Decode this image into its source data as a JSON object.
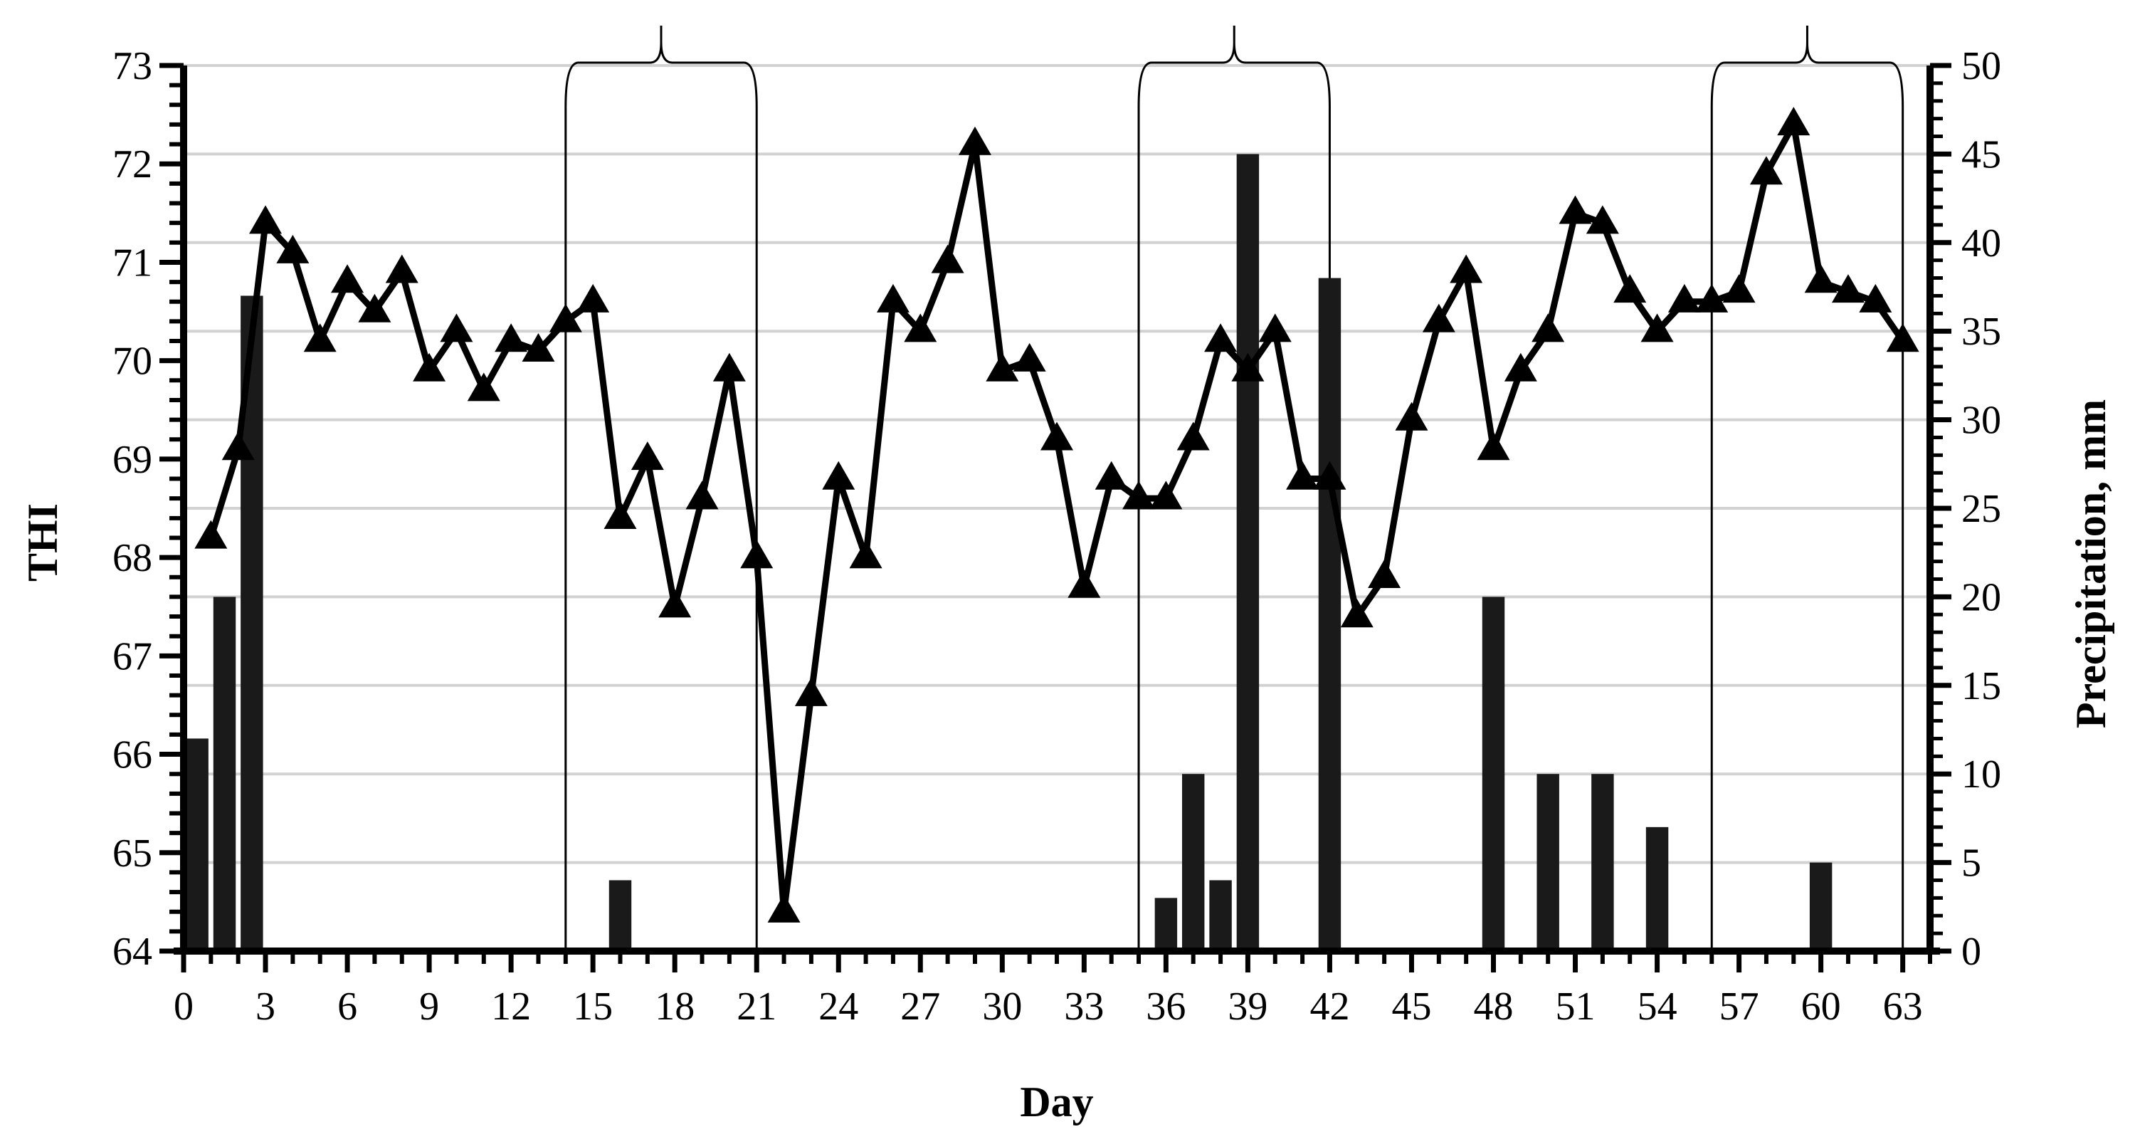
{
  "chart_data": {
    "type": "line+bar",
    "xlabel": "Day",
    "ylabel_left": "THI",
    "ylabel_right": "Precipitation, mm",
    "x_range": [
      0,
      64
    ],
    "x_ticks": [
      0,
      3,
      6,
      9,
      12,
      15,
      18,
      21,
      24,
      27,
      30,
      33,
      36,
      39,
      42,
      45,
      48,
      51,
      54,
      57,
      60,
      63
    ],
    "y_left_range": [
      64,
      73
    ],
    "y_left_ticks": [
      64,
      65,
      66,
      67,
      68,
      69,
      70,
      71,
      72,
      73
    ],
    "y_right_range": [
      0,
      50
    ],
    "y_right_ticks": [
      0,
      5,
      10,
      15,
      20,
      25,
      30,
      35,
      40,
      45,
      50
    ],
    "grid": "horizontal",
    "series": [
      {
        "kind": "line",
        "axis": "left",
        "marker": "triangle",
        "color": "#000000",
        "x": [
          1,
          2,
          3,
          4,
          5,
          6,
          7,
          8,
          9,
          10,
          11,
          12,
          13,
          14,
          15,
          16,
          17,
          18,
          19,
          20,
          21,
          22,
          23,
          24,
          25,
          26,
          27,
          28,
          29,
          30,
          31,
          32,
          33,
          34,
          35,
          36,
          37,
          38,
          39,
          40,
          41,
          42,
          43,
          44,
          45,
          46,
          47,
          48,
          49,
          50,
          51,
          52,
          53,
          54,
          55,
          56,
          57,
          58,
          59,
          60,
          61,
          62,
          63
        ],
        "values": [
          68.2,
          69.1,
          71.4,
          71.1,
          70.2,
          70.8,
          70.5,
          70.9,
          69.9,
          70.3,
          69.7,
          70.2,
          70.1,
          70.4,
          70.6,
          68.4,
          69.0,
          67.5,
          68.6,
          69.9,
          68.0,
          64.4,
          66.6,
          68.8,
          68.0,
          70.6,
          70.3,
          71.0,
          72.2,
          69.9,
          70.0,
          69.2,
          67.7,
          68.8,
          68.6,
          68.6,
          69.2,
          70.2,
          69.9,
          70.3,
          68.8,
          68.8,
          67.4,
          67.8,
          69.4,
          70.4,
          70.9,
          69.1,
          69.9,
          70.3,
          71.5,
          71.4,
          70.7,
          70.3,
          70.6,
          70.6,
          70.7,
          71.9,
          72.4,
          70.8,
          70.7,
          70.6,
          70.2
        ]
      },
      {
        "kind": "bar",
        "axis": "right",
        "color": "#1a1a1a",
        "x": [
          0.5,
          1.5,
          2.5,
          16,
          36,
          37,
          38,
          39,
          42,
          48,
          50,
          52,
          54,
          60
        ],
        "values": [
          12,
          20,
          37,
          4,
          3,
          10,
          4,
          45,
          38,
          20,
          10,
          10,
          7,
          5
        ]
      }
    ],
    "brackets": [
      [
        14,
        21
      ],
      [
        35,
        42
      ],
      [
        56,
        63
      ]
    ]
  }
}
